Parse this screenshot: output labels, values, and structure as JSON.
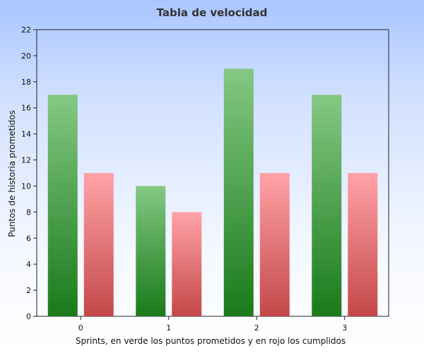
{
  "chart_data": {
    "type": "bar",
    "title": "Tabla de velocidad",
    "xlabel": "Sprints, en verde los puntos prometidos y en rojo los cumplidos",
    "ylabel": "Puntos de historia prometidos",
    "categories": [
      "0",
      "1",
      "2",
      "3"
    ],
    "series": [
      {
        "values": [
          17,
          10,
          19,
          17
        ],
        "color": "#2a8a2a"
      },
      {
        "values": [
          11,
          8,
          11,
          11
        ],
        "color": "#e06868"
      }
    ],
    "ylim": [
      0,
      22
    ],
    "yticks": [
      "0",
      "2",
      "4",
      "6",
      "8",
      "10",
      "12",
      "14",
      "16",
      "18",
      "20",
      "22"
    ],
    "grid": false,
    "legend": "none"
  }
}
